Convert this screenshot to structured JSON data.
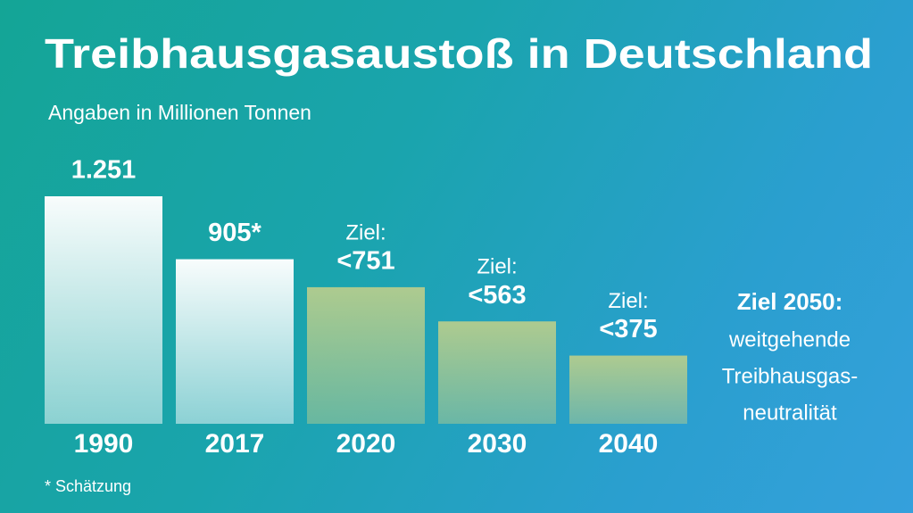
{
  "chart_data": {
    "type": "bar",
    "title": "Treibhausgasaustoß in Deutschland",
    "subtitle": "Angaben in Millionen Tonnen",
    "categories": [
      "1990",
      "2017",
      "2020",
      "2030",
      "2040"
    ],
    "values": [
      1251,
      905,
      751,
      563,
      375
    ],
    "value_labels": [
      "1.251",
      "905*",
      "<751",
      "<563",
      "<375"
    ],
    "annotations": [
      null,
      null,
      "Ziel:",
      "Ziel:",
      "Ziel:"
    ],
    "colors": [
      "#ffffff",
      "#ffffff",
      "#b2cc8e",
      "#b2cc8e",
      "#b2cc8e"
    ],
    "note": "* Schätzung",
    "side_text": {
      "heading": "Ziel 2050:",
      "lines": [
        "weitgehende",
        "Treibhausgas-",
        "neutralität"
      ]
    }
  }
}
